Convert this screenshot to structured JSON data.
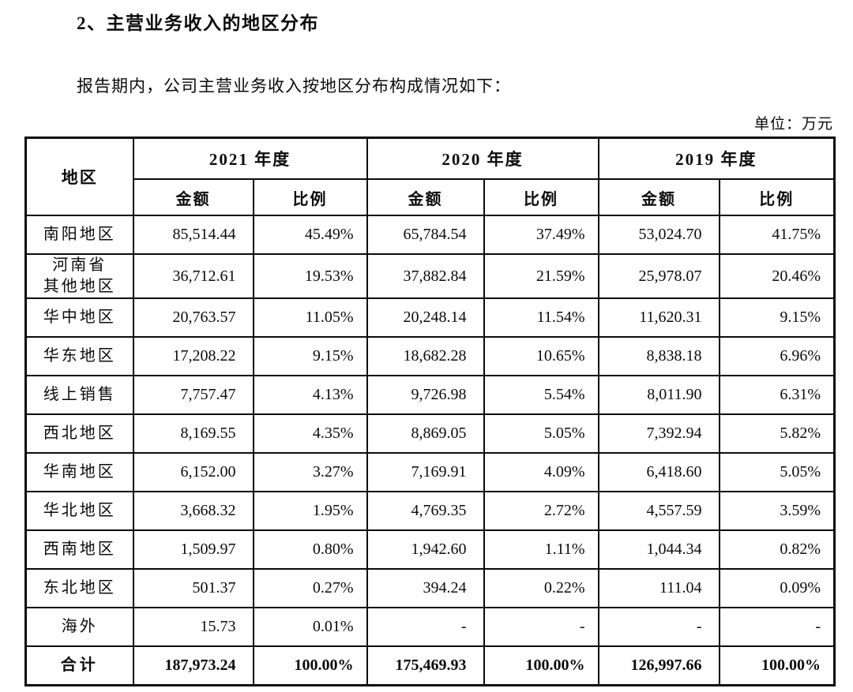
{
  "page": {
    "title": "2、主营业务收入的地区分布",
    "intro": "报告期内，公司主营业务收入按地区分布构成情况如下：",
    "unit_label": "单位：万元"
  },
  "table": {
    "region_header": "地区",
    "year_groups": [
      "2021 年度",
      "2020 年度",
      "2019 年度"
    ],
    "sub_headers": {
      "amount": "金额",
      "ratio": "比例"
    },
    "rows": [
      {
        "region": "南阳地区",
        "cells": [
          "85,514.44",
          "45.49%",
          "65,784.54",
          "37.49%",
          "53,024.70",
          "41.75%"
        ]
      },
      {
        "region": "河南省\n其他地区",
        "cells": [
          "36,712.61",
          "19.53%",
          "37,882.84",
          "21.59%",
          "25,978.07",
          "20.46%"
        ]
      },
      {
        "region": "华中地区",
        "cells": [
          "20,763.57",
          "11.05%",
          "20,248.14",
          "11.54%",
          "11,620.31",
          "9.15%"
        ]
      },
      {
        "region": "华东地区",
        "cells": [
          "17,208.22",
          "9.15%",
          "18,682.28",
          "10.65%",
          "8,838.18",
          "6.96%"
        ]
      },
      {
        "region": "线上销售",
        "cells": [
          "7,757.47",
          "4.13%",
          "9,726.98",
          "5.54%",
          "8,011.90",
          "6.31%"
        ]
      },
      {
        "region": "西北地区",
        "cells": [
          "8,169.55",
          "4.35%",
          "8,869.05",
          "5.05%",
          "7,392.94",
          "5.82%"
        ]
      },
      {
        "region": "华南地区",
        "cells": [
          "6,152.00",
          "3.27%",
          "7,169.91",
          "4.09%",
          "6,418.60",
          "5.05%"
        ]
      },
      {
        "region": "华北地区",
        "cells": [
          "3,668.32",
          "1.95%",
          "4,769.35",
          "2.72%",
          "4,557.59",
          "3.59%"
        ]
      },
      {
        "region": "西南地区",
        "cells": [
          "1,509.97",
          "0.80%",
          "1,942.60",
          "1.11%",
          "1,044.34",
          "0.82%"
        ]
      },
      {
        "region": "东北地区",
        "cells": [
          "501.37",
          "0.27%",
          "394.24",
          "0.22%",
          "111.04",
          "0.09%"
        ]
      },
      {
        "region": "海外",
        "cells": [
          "15.73",
          "0.01%",
          "-",
          "-",
          "-",
          "-"
        ]
      }
    ],
    "total_row": {
      "region": "合计",
      "cells": [
        "187,973.24",
        "100.00%",
        "175,469.93",
        "100.00%",
        "126,997.66",
        "100.00%"
      ]
    }
  }
}
